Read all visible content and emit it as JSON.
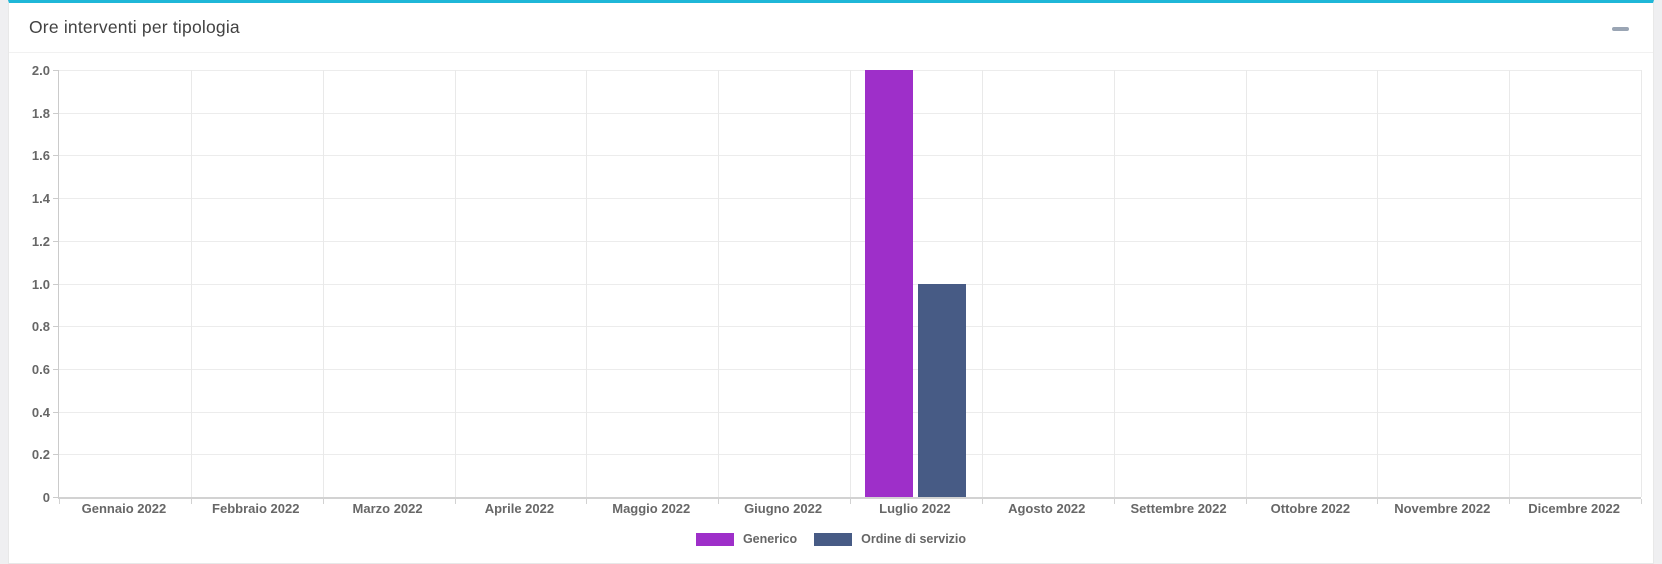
{
  "page": {
    "background_color": "#efeff1"
  },
  "card": {
    "title": "Ore interventi per tipologia",
    "accent_color": "#1fb7d8",
    "collapse_icon": "minus"
  },
  "chart_data": {
    "type": "bar",
    "title": "Ore interventi per tipologia",
    "categories": [
      "Gennaio 2022",
      "Febbraio 2022",
      "Marzo 2022",
      "Aprile 2022",
      "Maggio 2022",
      "Giugno 2022",
      "Luglio 2022",
      "Agosto 2022",
      "Settembre 2022",
      "Ottobre 2022",
      "Novembre 2022",
      "Dicembre 2022"
    ],
    "series": [
      {
        "name": "Generico",
        "color": "#9e2fc9",
        "values": [
          0,
          0,
          0,
          0,
          0,
          0,
          2,
          0,
          0,
          0,
          0,
          0
        ]
      },
      {
        "name": "Ordine di servizio",
        "color": "#475b85",
        "values": [
          0,
          0,
          0,
          0,
          0,
          0,
          1,
          0,
          0,
          0,
          0,
          0
        ]
      }
    ],
    "xlabel": "",
    "ylabel": "",
    "ylim": [
      0,
      2
    ],
    "yticks": [
      "0",
      "0.2",
      "0.4",
      "0.6",
      "0.8",
      "1.0",
      "1.2",
      "1.4",
      "1.6",
      "1.8",
      "2.0"
    ],
    "grid": true,
    "legend_position": "bottom"
  }
}
